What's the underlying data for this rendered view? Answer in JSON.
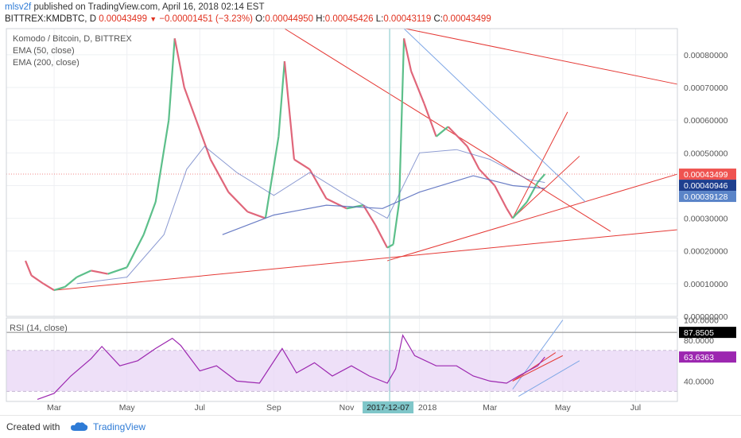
{
  "header": {
    "author": "mlsv2f",
    "published_text": "published on TradingView.com, April 16, 2018 02:14 EST",
    "symbol": "BITTREX:KMDBTC, D",
    "last": "0.00043499",
    "change": "−0.00001451 (−3.23%)",
    "o_label": "O:",
    "o_value": "0.00044950",
    "h_label": "H:",
    "h_value": "0.00045426",
    "l_label": "L:",
    "l_value": "0.00043119",
    "c_label": "C:",
    "c_value": "0.00043499"
  },
  "legend": {
    "line1": "Komodo / Bitcoin, D, BITTREX",
    "line2": "EMA (50, close)",
    "line3": "EMA (200, close)",
    "rsi": "RSI (14, close)"
  },
  "footer": {
    "created_with": "Created with",
    "brand": "TradingView"
  },
  "colors": {
    "up": "#5cbf8a",
    "down": "#e0667a",
    "ema": "#5a6fbf",
    "rsi": "#9c27b0",
    "trend": "#e53935",
    "blue_line": "#7fa7e6"
  },
  "chart_data": [
    {
      "type": "line",
      "title": "Komodo / Bitcoin, D, BITTREX",
      "y_ticks": [
        "0.00080000",
        "0.00070000",
        "0.00060000",
        "0.00050000",
        "0.00040000",
        "0.00030000",
        "0.00020000",
        "0.00010000",
        "0.00000000"
      ],
      "y_ticks_num": [
        0.0008,
        0.0007,
        0.0006,
        0.0005,
        0.0004,
        0.0003,
        0.0002,
        0.0001,
        0.0
      ],
      "ylim": [
        0.0,
        0.00088
      ],
      "x_ticks": [
        "Mar",
        "May",
        "Jul",
        "Sep",
        "Nov",
        "2017-12-07",
        "2018",
        "Mar",
        "May",
        "Jul"
      ],
      "x_ticks_date": [
        "2017-03-01",
        "2017-05-01",
        "2017-07-01",
        "2017-09-01",
        "2017-11-01",
        "2017-12-07",
        "2018-01-01",
        "2018-03-01",
        "2018-05-01",
        "2018-07-01"
      ],
      "xlim": [
        "2017-01-20",
        "2018-08-05"
      ],
      "price_labels": [
        {
          "text": "0.00043499",
          "value": 0.00043499,
          "color": "#ef5350"
        },
        {
          "text": "0.00040946",
          "value": 0.00040946,
          "color": "#1e3f8f"
        },
        {
          "text": "0.00039128",
          "value": 0.00039128,
          "color": "#5a84c8"
        }
      ],
      "series": [
        {
          "name": "Komodo / Bitcoin, D, BITTREX",
          "kind": "price",
          "points": [
            [
              "2017-02-05",
              0.00017
            ],
            [
              "2017-02-10",
              0.000125
            ],
            [
              "2017-02-20",
              0.0001
            ],
            [
              "2017-03-01",
              8e-05
            ],
            [
              "2017-03-10",
              9e-05
            ],
            [
              "2017-03-20",
              0.00012
            ],
            [
              "2017-04-01",
              0.00014
            ],
            [
              "2017-04-15",
              0.00013
            ],
            [
              "2017-05-01",
              0.00015
            ],
            [
              "2017-05-15",
              0.00025
            ],
            [
              "2017-05-25",
              0.00035
            ],
            [
              "2017-06-05",
              0.0006
            ],
            [
              "2017-06-10",
              0.00085
            ],
            [
              "2017-06-18",
              0.0007
            ],
            [
              "2017-06-28",
              0.0006
            ],
            [
              "2017-07-10",
              0.00048
            ],
            [
              "2017-07-25",
              0.00038
            ],
            [
              "2017-08-10",
              0.00032
            ],
            [
              "2017-08-25",
              0.0003
            ],
            [
              "2017-09-05",
              0.00055
            ],
            [
              "2017-09-10",
              0.00078
            ],
            [
              "2017-09-18",
              0.00048
            ],
            [
              "2017-10-01",
              0.00045
            ],
            [
              "2017-10-15",
              0.00036
            ],
            [
              "2017-11-01",
              0.00033
            ],
            [
              "2017-11-15",
              0.00034
            ],
            [
              "2017-11-25",
              0.00028
            ],
            [
              "2017-12-05",
              0.00021
            ],
            [
              "2017-12-10",
              0.00022
            ],
            [
              "2017-12-15",
              0.00035
            ],
            [
              "2017-12-19",
              0.00085
            ],
            [
              "2017-12-25",
              0.00075
            ],
            [
              "2018-01-05",
              0.00065
            ],
            [
              "2018-01-15",
              0.00055
            ],
            [
              "2018-01-25",
              0.00058
            ],
            [
              "2018-02-10",
              0.00052
            ],
            [
              "2018-02-20",
              0.00045
            ],
            [
              "2018-03-05",
              0.0004
            ],
            [
              "2018-03-15",
              0.00033
            ],
            [
              "2018-03-20",
              0.0003
            ],
            [
              "2018-04-01",
              0.00035
            ],
            [
              "2018-04-10",
              0.00041
            ],
            [
              "2018-04-16",
              0.00043499
            ]
          ]
        },
        {
          "name": "EMA (50, close)",
          "kind": "ema",
          "points": [
            [
              "2017-03-20",
              0.0001
            ],
            [
              "2017-05-01",
              0.00012
            ],
            [
              "2017-06-01",
              0.00025
            ],
            [
              "2017-06-20",
              0.00045
            ],
            [
              "2017-07-05",
              0.00052
            ],
            [
              "2017-08-01",
              0.00044
            ],
            [
              "2017-09-01",
              0.00037
            ],
            [
              "2017-10-01",
              0.00044
            ],
            [
              "2017-11-01",
              0.00037
            ],
            [
              "2017-12-05",
              0.0003
            ],
            [
              "2018-01-01",
              0.0005
            ],
            [
              "2018-02-01",
              0.00051
            ],
            [
              "2018-03-01",
              0.00048
            ],
            [
              "2018-04-01",
              0.00042
            ],
            [
              "2018-04-16",
              0.00040946
            ]
          ]
        },
        {
          "name": "EMA (200, close)",
          "kind": "ema",
          "points": [
            [
              "2017-07-20",
              0.00025
            ],
            [
              "2017-09-01",
              0.00031
            ],
            [
              "2017-10-15",
              0.00034
            ],
            [
              "2017-12-01",
              0.00033
            ],
            [
              "2018-01-01",
              0.00038
            ],
            [
              "2018-02-15",
              0.00043
            ],
            [
              "2018-03-20",
              0.0004
            ],
            [
              "2018-04-16",
              0.00039128
            ]
          ]
        }
      ]
    },
    {
      "type": "line",
      "title": "RSI (14, close)",
      "y_ticks": [
        "100.0000",
        "80.0000",
        "40.0000"
      ],
      "y_ticks_num": [
        100,
        80,
        40
      ],
      "ylim": [
        20,
        102
      ],
      "band": [
        30,
        70
      ],
      "price_labels": [
        {
          "text": "87.8505",
          "value": 87.8505,
          "color": "#000000"
        },
        {
          "text": "63.6363",
          "value": 63.6363,
          "color": "#9c27b0"
        }
      ],
      "series": [
        {
          "name": "RSI (14, close)",
          "points": [
            [
              "2017-02-15",
              22
            ],
            [
              "2017-03-01",
              28
            ],
            [
              "2017-03-15",
              45
            ],
            [
              "2017-04-01",
              62
            ],
            [
              "2017-04-10",
              74
            ],
            [
              "2017-04-25",
              55
            ],
            [
              "2017-05-10",
              60
            ],
            [
              "2017-05-25",
              72
            ],
            [
              "2017-06-08",
              82
            ],
            [
              "2017-06-15",
              75
            ],
            [
              "2017-07-01",
              50
            ],
            [
              "2017-07-15",
              55
            ],
            [
              "2017-08-01",
              40
            ],
            [
              "2017-08-20",
              38
            ],
            [
              "2017-09-08",
              72
            ],
            [
              "2017-09-20",
              48
            ],
            [
              "2017-10-05",
              58
            ],
            [
              "2017-10-20",
              45
            ],
            [
              "2017-11-05",
              55
            ],
            [
              "2017-11-20",
              45
            ],
            [
              "2017-12-05",
              38
            ],
            [
              "2017-12-12",
              52
            ],
            [
              "2017-12-18",
              85
            ],
            [
              "2017-12-28",
              65
            ],
            [
              "2018-01-15",
              55
            ],
            [
              "2018-02-01",
              55
            ],
            [
              "2018-02-15",
              45
            ],
            [
              "2018-03-01",
              40
            ],
            [
              "2018-03-15",
              38
            ],
            [
              "2018-03-25",
              45
            ],
            [
              "2018-04-10",
              55
            ],
            [
              "2018-04-16",
              63.6363
            ]
          ]
        }
      ]
    }
  ]
}
